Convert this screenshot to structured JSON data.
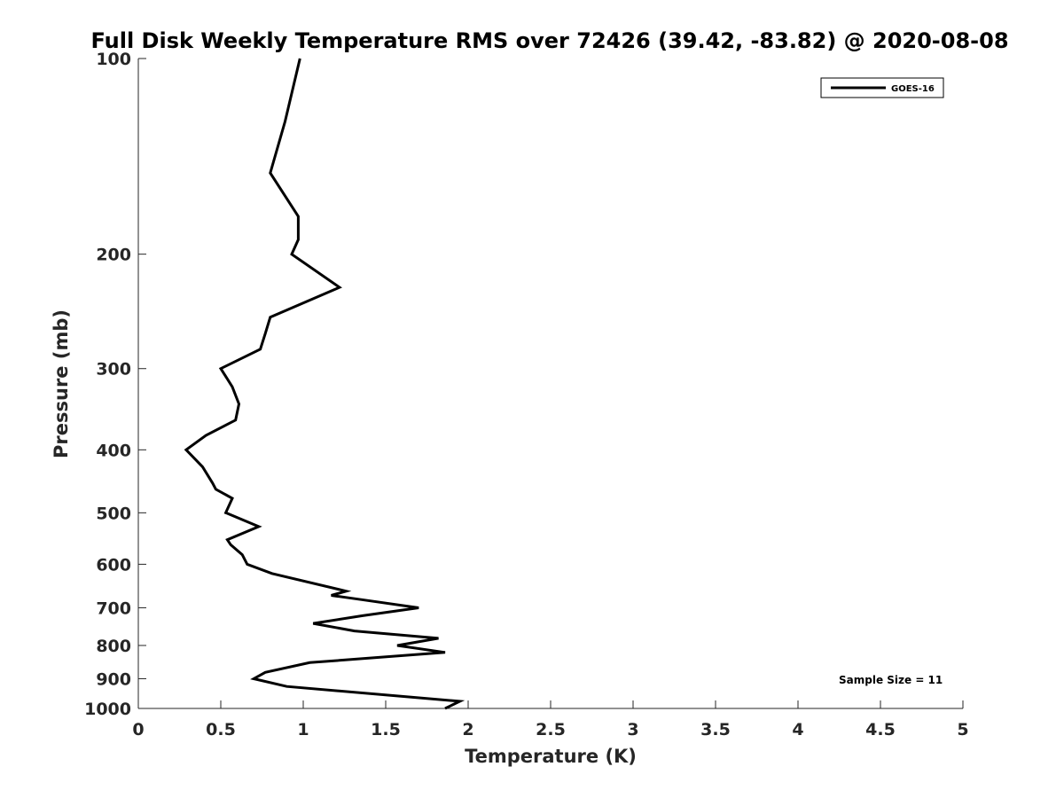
{
  "chart_data": {
    "type": "line",
    "title": "Full Disk Weekly Temperature RMS over 72426 (39.42, -83.82) @ 2020-08-08",
    "xlabel": "Temperature (K)",
    "ylabel": "Pressure (mb)",
    "xlim": [
      0,
      5
    ],
    "ylim": [
      100,
      1000
    ],
    "yscale": "log",
    "y_reversed": true,
    "grid": false,
    "legend_position": "top-right",
    "x_ticks": [
      0,
      0.5,
      1,
      1.5,
      2,
      2.5,
      3,
      3.5,
      4,
      4.5,
      5
    ],
    "x_tick_labels": [
      "0",
      "0.5",
      "1",
      "1.5",
      "2",
      "2.5",
      "3",
      "3.5",
      "4",
      "4.5",
      "5"
    ],
    "y_ticks": [
      100,
      200,
      300,
      400,
      500,
      600,
      700,
      800,
      900,
      1000
    ],
    "y_tick_labels": [
      "100",
      "200",
      "300",
      "400",
      "500",
      "600",
      "700",
      "800",
      "900",
      "1000"
    ],
    "series": [
      {
        "name": "GOES-16",
        "color": "#000000",
        "points": [
          [
            0.98,
            100
          ],
          [
            0.89,
            125
          ],
          [
            0.8,
            150
          ],
          [
            0.97,
            175
          ],
          [
            0.97,
            190
          ],
          [
            0.93,
            200
          ],
          [
            1.22,
            225
          ],
          [
            0.8,
            250
          ],
          [
            0.77,
            265
          ],
          [
            0.74,
            280
          ],
          [
            0.5,
            300
          ],
          [
            0.57,
            320
          ],
          [
            0.61,
            340
          ],
          [
            0.59,
            360
          ],
          [
            0.41,
            380
          ],
          [
            0.29,
            400
          ],
          [
            0.39,
            425
          ],
          [
            0.45,
            450
          ],
          [
            0.47,
            460
          ],
          [
            0.57,
            475
          ],
          [
            0.53,
            500
          ],
          [
            0.73,
            525
          ],
          [
            0.54,
            550
          ],
          [
            0.56,
            560
          ],
          [
            0.63,
            580
          ],
          [
            0.66,
            600
          ],
          [
            0.81,
            620
          ],
          [
            1.26,
            660
          ],
          [
            1.17,
            670
          ],
          [
            1.35,
            680
          ],
          [
            1.7,
            700
          ],
          [
            1.36,
            720
          ],
          [
            1.06,
            740
          ],
          [
            1.31,
            760
          ],
          [
            1.82,
            780
          ],
          [
            1.57,
            800
          ],
          [
            1.86,
            820
          ],
          [
            1.04,
            850
          ],
          [
            0.77,
            880
          ],
          [
            0.7,
            900
          ],
          [
            0.9,
            925
          ],
          [
            1.95,
            975
          ],
          [
            1.86,
            1000
          ]
        ]
      }
    ],
    "annotation": "Sample Size = 11"
  }
}
